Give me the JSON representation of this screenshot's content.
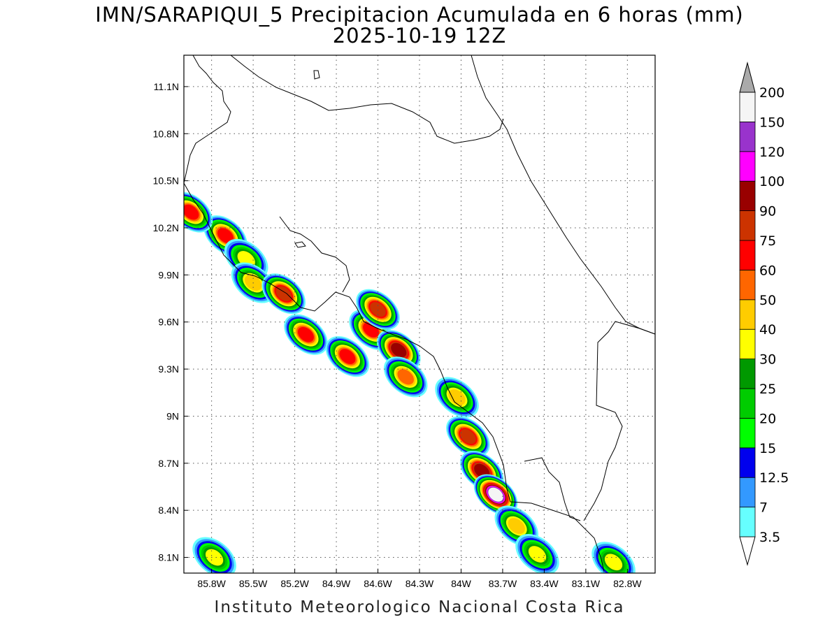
{
  "title": {
    "line1": "IMN/SARAPIQUI_5 Precipitacion Acumulada en 6 horas (mm)",
    "line2": "2025-10-19 12Z"
  },
  "footer": "Instituto Meteorologico Nacional Costa Rica",
  "map": {
    "lon_range": [
      -86.0,
      -82.6
    ],
    "lat_range": [
      8.0,
      11.3
    ],
    "x_ticks": [
      "85.8W",
      "85.5W",
      "85.2W",
      "84.9W",
      "84.6W",
      "84.3W",
      "84W",
      "83.7W",
      "83.4W",
      "83.1W",
      "82.8W"
    ],
    "y_ticks": [
      "8.1N",
      "8.4N",
      "8.7N",
      "9N",
      "9.3N",
      "9.6N",
      "9.9N",
      "10.2N",
      "10.5N",
      "10.8N",
      "11.1N"
    ],
    "grid": "dotted"
  },
  "colorbar": {
    "levels": [
      "3.5",
      "7",
      "12.5",
      "15",
      "20",
      "25",
      "30",
      "40",
      "50",
      "60",
      "75",
      "90",
      "100",
      "120",
      "150",
      "200"
    ],
    "colors": [
      "#66ffff",
      "#3399ff",
      "#0000ee",
      "#00ff00",
      "#00cc00",
      "#009900",
      "#ffff00",
      "#ffcc00",
      "#ff6600",
      "#ff0000",
      "#cc3300",
      "#990000",
      "#ff00ff",
      "#9933cc",
      "#f5f5f5",
      "#aaaaaa"
    ]
  },
  "precip_cells": [
    {
      "lon": -85.7,
      "lat": 10.15,
      "max": 60
    },
    {
      "lon": -85.55,
      "lat": 10.0,
      "max": 30
    },
    {
      "lon": -85.5,
      "lat": 9.85,
      "max": 40
    },
    {
      "lon": -85.28,
      "lat": 9.78,
      "max": 75
    },
    {
      "lon": -85.12,
      "lat": 9.52,
      "max": 60
    },
    {
      "lon": -84.82,
      "lat": 9.38,
      "max": 60
    },
    {
      "lon": -84.65,
      "lat": 9.55,
      "max": 60
    },
    {
      "lon": -84.6,
      "lat": 9.68,
      "max": 75
    },
    {
      "lon": -84.45,
      "lat": 9.42,
      "max": 90
    },
    {
      "lon": -84.4,
      "lat": 9.25,
      "max": 50
    },
    {
      "lon": -84.03,
      "lat": 9.12,
      "max": 40
    },
    {
      "lon": -83.95,
      "lat": 8.87,
      "max": 75
    },
    {
      "lon": -83.85,
      "lat": 8.65,
      "max": 90
    },
    {
      "lon": -83.75,
      "lat": 8.5,
      "max": 150
    },
    {
      "lon": -83.6,
      "lat": 8.3,
      "max": 40
    },
    {
      "lon": -83.45,
      "lat": 8.12,
      "max": 30
    },
    {
      "lon": -85.78,
      "lat": 8.1,
      "max": 30
    },
    {
      "lon": -85.95,
      "lat": 10.3,
      "max": 60
    },
    {
      "lon": -82.9,
      "lat": 8.07,
      "max": 30
    }
  ]
}
